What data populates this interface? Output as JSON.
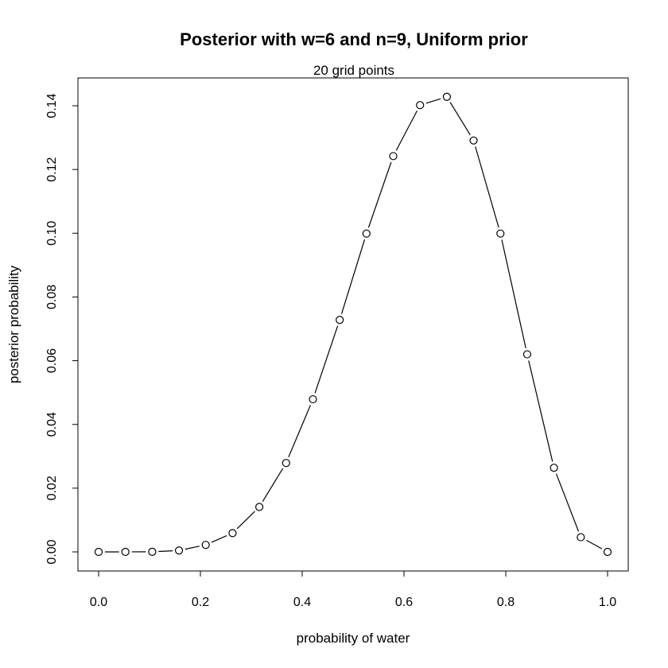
{
  "chart_data": {
    "type": "line",
    "title": "Posterior with w=6 and n=9, Uniform prior",
    "subtitle": "20 grid points",
    "xlabel": "probability of water",
    "ylabel": "posterior probability",
    "xlim": [
      0,
      1
    ],
    "ylim": [
      0,
      0.14
    ],
    "x_ticks": [
      0.0,
      0.2,
      0.4,
      0.6,
      0.8,
      1.0
    ],
    "x_tick_labels": [
      "0.0",
      "0.2",
      "0.4",
      "0.6",
      "0.8",
      "1.0"
    ],
    "y_ticks": [
      0.0,
      0.02,
      0.04,
      0.06,
      0.08,
      0.1,
      0.12,
      0.14
    ],
    "y_tick_labels": [
      "0.00",
      "0.02",
      "0.04",
      "0.06",
      "0.08",
      "0.10",
      "0.12",
      "0.14"
    ],
    "grid": false,
    "legend": "none",
    "markers": "open-circle",
    "line_color": "#000000",
    "x": [
      0.0,
      0.0526,
      0.1053,
      0.1579,
      0.2105,
      0.2632,
      0.3158,
      0.3684,
      0.4211,
      0.4737,
      0.5263,
      0.5789,
      0.6316,
      0.6842,
      0.7368,
      0.7895,
      0.8421,
      0.8947,
      0.9474,
      1.0
    ],
    "y": [
      0.0,
      8e-07,
      4e-05,
      0.00043,
      0.0022,
      0.0059,
      0.0141,
      0.0279,
      0.0479,
      0.0728,
      0.0999,
      0.1242,
      0.1402,
      0.1428,
      0.1291,
      0.0999,
      0.062,
      0.0264,
      0.0046,
      0.0
    ]
  }
}
